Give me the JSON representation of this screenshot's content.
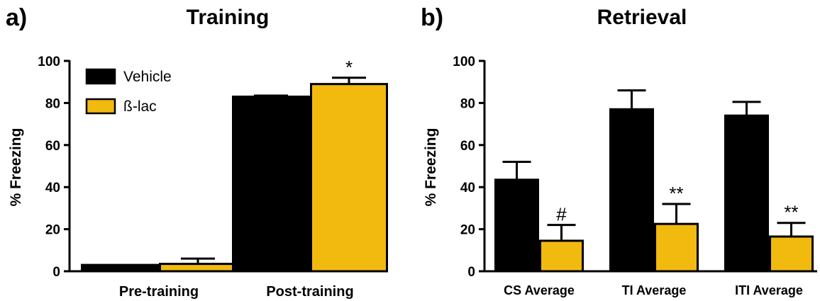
{
  "chart_data": [
    {
      "type": "bar",
      "panel_letter": "a)",
      "title": "Training",
      "ylabel": "% Freezing",
      "ylim": [
        0,
        100
      ],
      "yticks": [
        "0",
        "20",
        "40",
        "60",
        "80",
        "100"
      ],
      "categories": [
        "Pre-training",
        "Post-training"
      ],
      "series": [
        {
          "name": "Vehicle",
          "color": "#000000",
          "values": [
            3,
            83
          ],
          "errors": [
            0.3,
            0.5
          ]
        },
        {
          "name": "ß-lac",
          "color": "#f2b90f",
          "values": [
            3.5,
            89
          ],
          "errors": [
            2.5,
            3
          ]
        }
      ],
      "annotations": [
        {
          "category": 1,
          "series": 1,
          "text": "*"
        }
      ],
      "legend": {
        "placement": "top-left",
        "items": [
          "Vehicle",
          "ß-lac"
        ]
      }
    },
    {
      "type": "bar",
      "panel_letter": "b)",
      "title": "Retrieval",
      "ylabel": "% Freezing",
      "ylim": [
        0,
        100
      ],
      "yticks": [
        "0",
        "20",
        "40",
        "60",
        "80",
        "100"
      ],
      "categories": [
        "CS Average",
        "TI Average",
        "ITI Average"
      ],
      "series": [
        {
          "name": "Vehicle",
          "color": "#000000",
          "values": [
            43.5,
            77,
            74
          ],
          "errors": [
            8.5,
            9,
            6.5
          ]
        },
        {
          "name": "ß-lac",
          "color": "#f2b90f",
          "values": [
            14.5,
            22.5,
            16.5
          ],
          "errors": [
            7.5,
            9.5,
            6.5
          ]
        }
      ],
      "annotations": [
        {
          "category": 0,
          "series": 1,
          "text": "#"
        },
        {
          "category": 1,
          "series": 1,
          "text": "**"
        },
        {
          "category": 2,
          "series": 1,
          "text": "**"
        }
      ]
    }
  ]
}
